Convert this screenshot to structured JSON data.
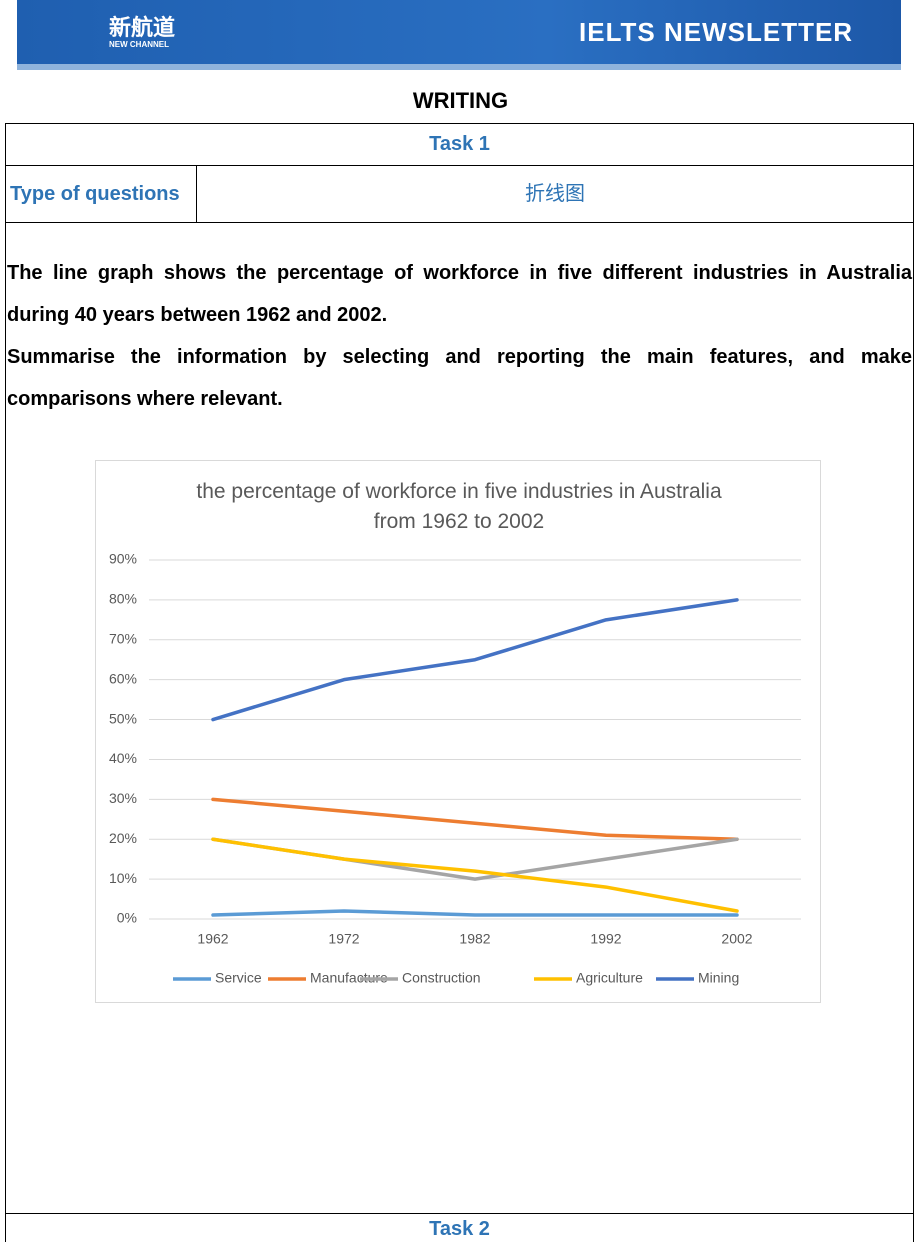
{
  "header": {
    "logo_text": "新航道",
    "logo_sub": "NEW CHANNEL",
    "title": "IELTS NEWSLETTER"
  },
  "section": "WRITING",
  "table": {
    "task1": "Task 1",
    "type_label": "Type of questions",
    "type_value": "折线图",
    "prompt": [
      "The line graph shows the percentage of workforce in five different industries in Australia during 40 years between 1962 and 2002.",
      "Summarise the information by selecting and reporting the main features, and make comparisons where relevant."
    ],
    "task2": "Task 2"
  },
  "chart_data": {
    "type": "line",
    "title": "the percentage of workforce in five industries in Australia from 1962 to 2002",
    "categories": [
      "1962",
      "1972",
      "1982",
      "1992",
      "2002"
    ],
    "series": [
      {
        "name": "Service",
        "color": "#5b9bd5",
        "values": [
          1,
          2,
          1,
          1,
          1
        ]
      },
      {
        "name": "Manufacture",
        "color": "#ed7d31",
        "values": [
          30,
          27,
          24,
          21,
          20
        ]
      },
      {
        "name": "Construction",
        "color": "#a5a5a5",
        "values": [
          20,
          15,
          10,
          15,
          20
        ]
      },
      {
        "name": "Agriculture",
        "color": "#ffc000",
        "values": [
          20,
          15,
          12,
          8,
          2
        ]
      },
      {
        "name": "Mining",
        "color": "#4472c4",
        "values": [
          50,
          60,
          65,
          75,
          80
        ]
      }
    ],
    "ylim": [
      0,
      90
    ],
    "yticks": [
      {
        "value": 0,
        "label": "0%"
      },
      {
        "value": 10,
        "label": "10%"
      },
      {
        "value": 20,
        "label": "20%"
      },
      {
        "value": 30,
        "label": "30%"
      },
      {
        "value": 40,
        "label": "40%"
      },
      {
        "value": 50,
        "label": "50%"
      },
      {
        "value": 60,
        "label": "60%"
      },
      {
        "value": 70,
        "label": "70%"
      },
      {
        "value": 80,
        "label": "80%"
      },
      {
        "value": 90,
        "label": "90%"
      }
    ],
    "grid": true,
    "legend": "bottom"
  }
}
